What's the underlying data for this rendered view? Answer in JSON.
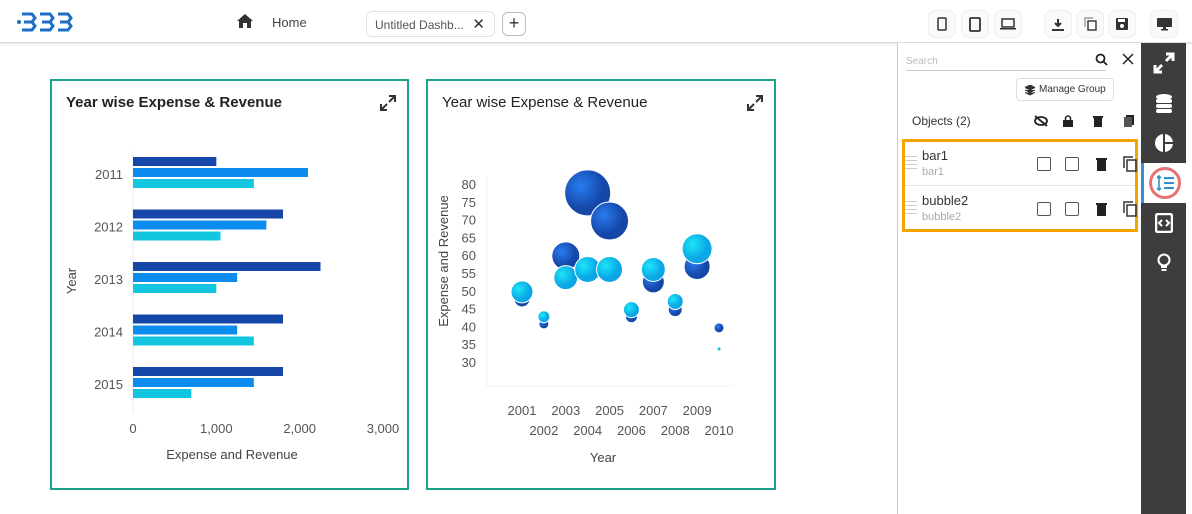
{
  "header": {
    "home_label": "Home",
    "tab_label": "Untitled Dashb...",
    "add_tab": "+",
    "close": "✕"
  },
  "panels": [
    {
      "title": "Year wise Expense & Revenue"
    },
    {
      "title": "Year wise Expense & Revenue"
    }
  ],
  "right_panel": {
    "search_placeholder": "Search",
    "manage_group": "Manage Group",
    "objects_label": "Objects (2)",
    "objects": [
      {
        "name": "bar1",
        "sub": "bar1"
      },
      {
        "name": "bubble2",
        "sub": "bubble2"
      }
    ]
  },
  "colors": {
    "panel_border": "#1aa38a",
    "highlight": "#f5a300",
    "dark": "#1447a8",
    "mid": "#0d8cf0",
    "light": "#12c6e0"
  },
  "chart_data": [
    {
      "type": "bar",
      "orientation": "horizontal",
      "title": "Year wise Expense & Revenue",
      "xlabel": "Expense and Revenue",
      "ylabel": "Year",
      "categories": [
        "2011",
        "2012",
        "2013",
        "2014",
        "2015"
      ],
      "xlim": [
        0,
        3000
      ],
      "xticks": [
        "0",
        "1,000",
        "2,000",
        "3,000"
      ],
      "series": [
        {
          "color": "#1447a8",
          "values": [
            1000,
            1800,
            2250,
            1800,
            1800
          ]
        },
        {
          "color": "#0d8cf0",
          "values": [
            2100,
            1600,
            1250,
            1250,
            1450
          ]
        },
        {
          "color": "#12c6e0",
          "values": [
            1450,
            1050,
            1000,
            1450,
            700
          ]
        }
      ]
    },
    {
      "type": "bubble",
      "title": "Year wise Expense & Revenue",
      "xlabel": "Year",
      "ylabel": "Expense and Revenue",
      "x": [
        2001,
        2002,
        2003,
        2004,
        2005,
        2006,
        2007,
        2008,
        2009,
        2010
      ],
      "xticks_top": [
        "2001",
        "2003",
        "2005",
        "2007",
        "2009"
      ],
      "xticks_bottom": [
        "2002",
        "2004",
        "2006",
        "2008",
        "2010"
      ],
      "ylim": [
        30,
        80
      ],
      "yticks": [
        "30",
        "35",
        "40",
        "45",
        "50",
        "55",
        "60",
        "65",
        "70",
        "75",
        "80"
      ],
      "series": [
        {
          "color": "#1447a8",
          "y": [
            47.7,
            40.7,
            59.8,
            77.5,
            69.6,
            42.7,
            52.5,
            44.7,
            56.8,
            39.6
          ],
          "size": [
            8,
            5,
            14,
            23,
            19,
            6,
            11,
            7,
            13,
            5
          ]
        },
        {
          "color": "#12c6e0",
          "y": [
            49.7,
            42.7,
            53.7,
            56,
            56,
            44.7,
            56,
            47,
            61.8,
            33.7
          ],
          "size": [
            11,
            6,
            12,
            13,
            13,
            8,
            12,
            8,
            15,
            2
          ]
        }
      ]
    }
  ]
}
